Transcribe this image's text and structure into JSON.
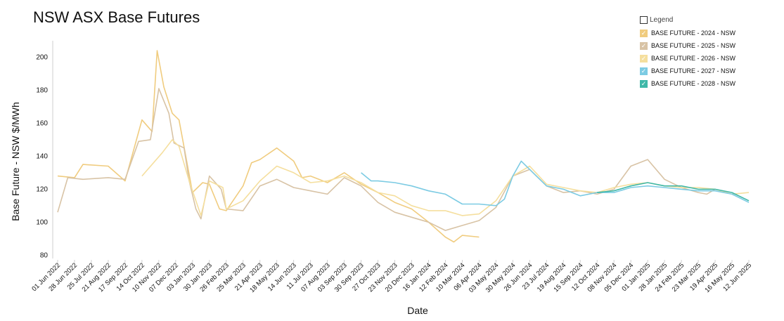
{
  "chart_data": {
    "type": "line",
    "title": "NSW ASX Base Futures",
    "xlabel": "Date",
    "ylabel": "Base Future - NSW $/MWh",
    "ylim": [
      78,
      210
    ],
    "yticks": [
      80,
      100,
      120,
      140,
      160,
      180,
      200
    ],
    "xticks": [
      "01 Jun 2022",
      "28 Jun 2022",
      "25 Jul 2022",
      "21 Aug 2022",
      "17 Sep 2022",
      "14 Oct 2022",
      "10 Nov 2022",
      "07 Dec 2022",
      "03 Jan 2023",
      "30 Jan 2023",
      "26 Feb 2023",
      "25 Mar 2023",
      "21 Apr 2023",
      "18 May 2023",
      "14 Jun 2023",
      "11 Jul 2023",
      "07 Aug 2023",
      "03 Sep 2023",
      "30 Sep 2023",
      "27 Oct 2023",
      "23 Nov 2023",
      "20 Dec 2023",
      "16 Jan 2024",
      "12 Feb 2024",
      "10 Mar 2024",
      "06 Apr 2024",
      "03 May 2024",
      "30 May 2024",
      "26 Jun 2024",
      "23 Jul 2024",
      "19 Aug 2024",
      "15 Sep 2024",
      "12 Oct 2024",
      "08 Nov 2024",
      "05 Dec 2024",
      "01 Jan 2025",
      "28 Jan 2025",
      "24 Feb 2025",
      "23 Mar 2025",
      "19 Apr 2025",
      "16 May 2025",
      "12 Jun 2025"
    ],
    "grid": false,
    "legend": {
      "title": "Legend",
      "placement": "top-right"
    },
    "series": [
      {
        "name": "BASE FUTURE - 2024 - NSW",
        "color": "#f0cc7f",
        "points": [
          [
            0,
            128
          ],
          [
            1,
            127
          ],
          [
            1.5,
            135
          ],
          [
            3,
            134
          ],
          [
            4,
            125
          ],
          [
            5,
            162
          ],
          [
            5.6,
            155
          ],
          [
            5.9,
            204
          ],
          [
            6.3,
            182
          ],
          [
            6.8,
            166
          ],
          [
            7.2,
            162
          ],
          [
            8,
            118
          ],
          [
            8.6,
            124
          ],
          [
            9,
            123
          ],
          [
            9.6,
            108
          ],
          [
            10,
            107
          ],
          [
            11,
            122
          ],
          [
            11.5,
            136
          ],
          [
            12,
            138
          ],
          [
            13,
            145
          ],
          [
            14,
            137
          ],
          [
            14.5,
            127
          ],
          [
            15,
            128
          ],
          [
            16,
            124
          ],
          [
            17,
            130
          ],
          [
            18,
            123
          ],
          [
            19,
            118
          ],
          [
            20,
            112
          ],
          [
            21,
            108
          ],
          [
            22,
            100
          ],
          [
            23,
            91
          ],
          [
            23.5,
            88
          ],
          [
            24,
            92
          ],
          [
            25,
            91
          ]
        ]
      },
      {
        "name": "BASE FUTURE - 2025 - NSW",
        "color": "#d8c3a5",
        "points": [
          [
            0,
            106
          ],
          [
            0.6,
            127
          ],
          [
            1.5,
            126
          ],
          [
            3,
            127
          ],
          [
            4,
            126
          ],
          [
            4.8,
            149
          ],
          [
            5.5,
            150
          ],
          [
            6,
            181
          ],
          [
            6.6,
            166
          ],
          [
            6.9,
            148
          ],
          [
            7.5,
            145
          ],
          [
            7.8,
            125
          ],
          [
            8.2,
            108
          ],
          [
            8.5,
            102
          ],
          [
            9,
            128
          ],
          [
            9.7,
            120
          ],
          [
            10,
            108
          ],
          [
            11,
            107
          ],
          [
            12,
            122
          ],
          [
            13,
            126
          ],
          [
            14,
            121
          ],
          [
            15,
            119
          ],
          [
            16,
            117
          ],
          [
            17,
            127
          ],
          [
            18,
            122
          ],
          [
            19,
            112
          ],
          [
            20,
            106
          ],
          [
            21,
            103
          ],
          [
            22,
            100
          ],
          [
            23,
            95
          ],
          [
            24,
            98
          ],
          [
            25,
            101
          ],
          [
            26,
            109
          ],
          [
            27,
            128
          ],
          [
            28,
            132
          ],
          [
            29,
            122
          ],
          [
            30,
            118
          ],
          [
            31,
            119
          ],
          [
            32,
            117
          ],
          [
            33,
            120
          ],
          [
            34,
            134
          ],
          [
            35,
            138
          ],
          [
            36,
            126
          ],
          [
            37,
            121
          ],
          [
            38,
            118
          ],
          [
            38.5,
            117
          ],
          [
            39,
            120
          ]
        ]
      },
      {
        "name": "BASE FUTURE - 2026 - NSW",
        "color": "#f5df9e",
        "points": [
          [
            5,
            128
          ],
          [
            6.2,
            142
          ],
          [
            6.8,
            150
          ],
          [
            7.2,
            146
          ],
          [
            7.8,
            125
          ],
          [
            8.5,
            104
          ],
          [
            9,
            125
          ],
          [
            9.8,
            121
          ],
          [
            10,
            108
          ],
          [
            11,
            113
          ],
          [
            12,
            125
          ],
          [
            13,
            134
          ],
          [
            14,
            130
          ],
          [
            15,
            124
          ],
          [
            16,
            125
          ],
          [
            17,
            128
          ],
          [
            18,
            124
          ],
          [
            19,
            118
          ],
          [
            20,
            116
          ],
          [
            21,
            110
          ],
          [
            22,
            107
          ],
          [
            23,
            107
          ],
          [
            24,
            104
          ],
          [
            25,
            105
          ],
          [
            26,
            113
          ],
          [
            27,
            128
          ],
          [
            28,
            134
          ],
          [
            29,
            123
          ],
          [
            30,
            121
          ],
          [
            31,
            119
          ],
          [
            32,
            118
          ],
          [
            33,
            121
          ],
          [
            34,
            123
          ],
          [
            35,
            124
          ],
          [
            36,
            122
          ],
          [
            37,
            121
          ],
          [
            38,
            121
          ],
          [
            39,
            120
          ],
          [
            40,
            117
          ],
          [
            41,
            118
          ]
        ]
      },
      {
        "name": "BASE FUTURE - 2027 - NSW",
        "color": "#7ccbe3",
        "points": [
          [
            18,
            130
          ],
          [
            18.6,
            125
          ],
          [
            19,
            125
          ],
          [
            20,
            124
          ],
          [
            21,
            122
          ],
          [
            22,
            119
          ],
          [
            23,
            117
          ],
          [
            24,
            111
          ],
          [
            25,
            111
          ],
          [
            26,
            110
          ],
          [
            26.5,
            114
          ],
          [
            27,
            128
          ],
          [
            27.5,
            137
          ],
          [
            28,
            132
          ],
          [
            29,
            122
          ],
          [
            30,
            120
          ],
          [
            31,
            116
          ],
          [
            32,
            118
          ],
          [
            33,
            118
          ],
          [
            34,
            121
          ],
          [
            35,
            122
          ],
          [
            36,
            121
          ],
          [
            37,
            120
          ],
          [
            38,
            119
          ],
          [
            39,
            119
          ],
          [
            40,
            117
          ],
          [
            41,
            112
          ]
        ]
      },
      {
        "name": "BASE FUTURE - 2028 - NSW",
        "color": "#3fb8a8",
        "points": [
          [
            32,
            118
          ],
          [
            33,
            119
          ],
          [
            34,
            122
          ],
          [
            35,
            124
          ],
          [
            36,
            122
          ],
          [
            37,
            122
          ],
          [
            38,
            120
          ],
          [
            39,
            120
          ],
          [
            40,
            118
          ],
          [
            41,
            113
          ]
        ]
      }
    ]
  }
}
